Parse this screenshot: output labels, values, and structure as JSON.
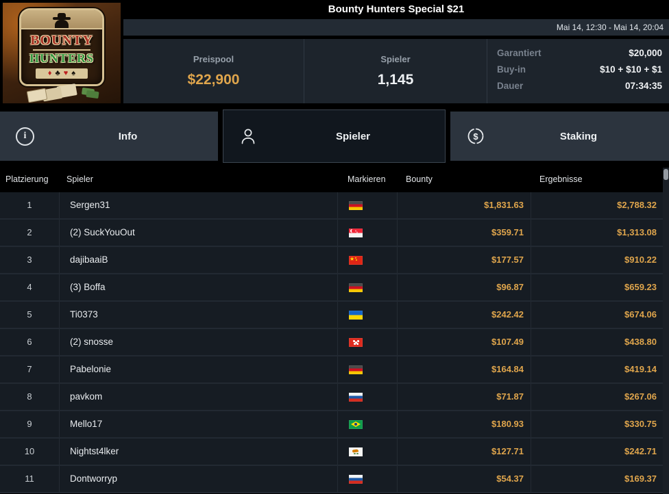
{
  "colors": {
    "accent_gold": "#dfa54c"
  },
  "window": {
    "title": "Bounty Hunters Special $21",
    "date_range": "Mai 14, 12:30 - Mai 14, 20:04"
  },
  "logo": {
    "line1": "BOUNTY",
    "line2": "HUNTERS",
    "suits": [
      {
        "glyph": "♦",
        "color": "red"
      },
      {
        "glyph": "♣",
        "color": "black"
      },
      {
        "glyph": "♥",
        "color": "red"
      },
      {
        "glyph": "♠",
        "color": "black"
      }
    ]
  },
  "stats": {
    "prizepool": {
      "label": "Preispool",
      "value": "$22,900"
    },
    "players": {
      "label": "Spieler",
      "value": "1,145"
    },
    "details": [
      {
        "label": "Garantiert",
        "value": "$20,000"
      },
      {
        "label": "Buy-in",
        "value": "$10 + $10 + $1"
      },
      {
        "label": "Dauer",
        "value": "07:34:35"
      }
    ]
  },
  "tabs": [
    {
      "label": "Info",
      "icon": "info-icon",
      "active": false
    },
    {
      "label": "Spieler",
      "icon": "person-icon",
      "active": true
    },
    {
      "label": "Staking",
      "icon": "staking-icon",
      "active": false
    }
  ],
  "table": {
    "columns": [
      "Platzierung",
      "Spieler",
      "Markieren",
      "Bounty",
      "Ergebnisse"
    ],
    "rows": [
      {
        "rank": "1",
        "player": "Sergen31",
        "country": "germany",
        "flag": "de",
        "bounty": "$1,831.63",
        "result": "$2,788.32"
      },
      {
        "rank": "2",
        "player": "(2) SuckYouOut",
        "country": "singapore",
        "flag": "sg",
        "bounty": "$359.71",
        "result": "$1,313.08"
      },
      {
        "rank": "3",
        "player": "dajibaaiB",
        "country": "china",
        "flag": "cn",
        "bounty": "$177.57",
        "result": "$910.22"
      },
      {
        "rank": "4",
        "player": "(3) Boffa",
        "country": "germany",
        "flag": "de",
        "bounty": "$96.87",
        "result": "$659.23"
      },
      {
        "rank": "5",
        "player": "Ti0373",
        "country": "ukraine",
        "flag": "ua",
        "bounty": "$242.42",
        "result": "$674.06"
      },
      {
        "rank": "6",
        "player": "(2) snosse",
        "country": "hong-kong",
        "flag": "hk",
        "bounty": "$107.49",
        "result": "$438.80"
      },
      {
        "rank": "7",
        "player": "Pabelonie",
        "country": "germany",
        "flag": "de",
        "bounty": "$164.84",
        "result": "$419.14"
      },
      {
        "rank": "8",
        "player": "pavkom",
        "country": "russia",
        "flag": "ru",
        "bounty": "$71.87",
        "result": "$267.06"
      },
      {
        "rank": "9",
        "player": "Mello17",
        "country": "brazil",
        "flag": "br",
        "bounty": "$180.93",
        "result": "$330.75"
      },
      {
        "rank": "10",
        "player": "Nightst4lker",
        "country": "cyprus",
        "flag": "cy",
        "bounty": "$127.71",
        "result": "$242.71"
      },
      {
        "rank": "11",
        "player": "Dontworryp",
        "country": "russia",
        "flag": "ru",
        "bounty": "$54.37",
        "result": "$169.37"
      }
    ]
  }
}
